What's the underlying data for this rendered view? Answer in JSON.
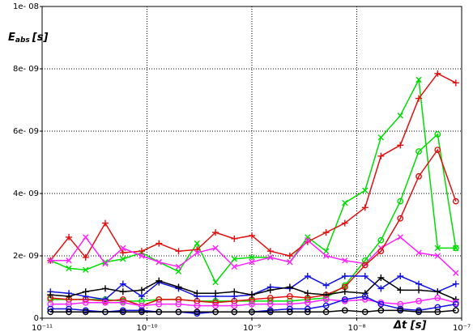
{
  "chart_data": {
    "type": "line",
    "xlog": true,
    "grid": true,
    "ylabel": "E",
    "ylabel_sub": "abs",
    "ylabel_unit": "[s]",
    "xlabel": "Δt [s]",
    "xlim": [
      1e-11,
      1e-07
    ],
    "xticks": [
      {
        "value": 1e-11,
        "label": "10⁻¹¹"
      },
      {
        "value": 1e-10,
        "label": "10⁻¹⁰"
      },
      {
        "value": 1e-09,
        "label": "10⁻⁹"
      },
      {
        "value": 1e-08,
        "label": "10⁻⁸"
      },
      {
        "value": 1e-07,
        "label": "10⁻⁷"
      }
    ],
    "ylim": [
      0,
      1e-08
    ],
    "yticks": [
      0,
      {
        "value": 2e-09,
        "label": "2e- 09"
      },
      {
        "value": 4e-09,
        "label": "4e- 09"
      },
      {
        "value": 6e-09,
        "label": "6e- 09"
      },
      {
        "value": 8e-09,
        "label": "8e- 09"
      },
      {
        "value": 1e-08,
        "label": "1e- 08"
      }
    ],
    "x": [
      1.2e-11,
      1.8e-11,
      2.6e-11,
      4e-11,
      5.9e-11,
      8.9e-11,
      1.3e-10,
      2e-10,
      3e-10,
      4.5e-10,
      6.8e-10,
      1e-09,
      1.5e-09,
      2.3e-09,
      3.4e-09,
      5.1e-09,
      7.7e-09,
      1.2e-08,
      1.7e-08,
      2.6e-08,
      3.9e-08,
      5.9e-08,
      8.8e-08
    ],
    "series": [
      {
        "color": "#00dd00",
        "marker": "x",
        "values": [
          1.85e-09,
          1.6e-09,
          1.55e-09,
          1.8e-09,
          1.9e-09,
          2.1e-09,
          1.8e-09,
          1.5e-09,
          2.4e-09,
          1.15e-09,
          1.9e-09,
          1.95e-09,
          1.95e-09,
          1.8e-09,
          2.6e-09,
          2.15e-09,
          3.7e-09,
          4.1e-09,
          5.8e-09,
          6.5e-09,
          7.65e-09,
          2.25e-09,
          2.25e-09
        ]
      },
      {
        "color": "#e01010",
        "marker": "+",
        "values": [
          1.85e-09,
          2.6e-09,
          1.95e-09,
          3.05e-09,
          2.1e-09,
          2.15e-09,
          2.4e-09,
          2.15e-09,
          2.2e-09,
          2.75e-09,
          2.55e-09,
          2.65e-09,
          2.15e-09,
          2e-09,
          2.45e-09,
          2.75e-09,
          3.05e-09,
          3.55e-09,
          5.2e-09,
          5.55e-09,
          7.05e-09,
          7.85e-09,
          7.55e-09
        ]
      },
      {
        "color": "#ff22ff",
        "marker": "x",
        "values": [
          1.85e-09,
          1.85e-09,
          2.6e-09,
          1.75e-09,
          2.25e-09,
          2e-09,
          1.8e-09,
          1.65e-09,
          2.1e-09,
          2.25e-09,
          1.65e-09,
          1.8e-09,
          1.95e-09,
          1.8e-09,
          2.5e-09,
          2e-09,
          1.85e-09,
          1.75e-09,
          2.25e-09,
          2.6e-09,
          2.1e-09,
          2e-09,
          1.45e-09
        ]
      },
      {
        "color": "#00dd00",
        "marker": "o",
        "values": [
          6e-10,
          6e-10,
          6e-10,
          6e-10,
          5.5e-10,
          5.5e-10,
          6e-10,
          6e-10,
          5.5e-10,
          5.5e-10,
          5.5e-10,
          5.5e-10,
          5.5e-10,
          5.5e-10,
          6e-10,
          6.5e-10,
          1.05e-09,
          1.85e-09,
          2.5e-09,
          3.75e-09,
          5.35e-09,
          5.9e-09,
          2.25e-09
        ]
      },
      {
        "color": "#e01010",
        "marker": "o",
        "values": [
          6.5e-10,
          6e-10,
          6e-10,
          5.5e-10,
          6e-10,
          4e-10,
          6e-10,
          6e-10,
          5.5e-10,
          5e-10,
          5.5e-10,
          6e-10,
          6.5e-10,
          7e-10,
          6.5e-10,
          7.5e-10,
          1e-09,
          1.7e-09,
          2.15e-09,
          3.2e-09,
          4.55e-09,
          5.4e-09,
          3.75e-09
        ]
      },
      {
        "color": "#1010e0",
        "marker": "+",
        "values": [
          8.5e-10,
          8e-10,
          7e-10,
          6e-10,
          1.1e-09,
          7e-10,
          1.15e-09,
          9.5e-10,
          7e-10,
          7e-10,
          7e-10,
          7.5e-10,
          1e-09,
          9.5e-10,
          1.35e-09,
          1.05e-09,
          1.35e-09,
          1.35e-09,
          9.5e-10,
          1.35e-09,
          1.1e-09,
          8.5e-10,
          1.1e-09
        ]
      },
      {
        "color": "#000000",
        "marker": "+",
        "values": [
          7.5e-10,
          7e-10,
          8.5e-10,
          9.5e-10,
          8.5e-10,
          9e-10,
          1.2e-09,
          1e-09,
          8e-10,
          8e-10,
          8.5e-10,
          7.5e-10,
          9e-10,
          1e-09,
          8e-10,
          7.5e-10,
          8.5e-10,
          8e-10,
          1.3e-09,
          9e-10,
          9e-10,
          8.5e-10,
          6e-10
        ]
      },
      {
        "color": "#ff22ff",
        "marker": "o",
        "values": [
          4.5e-10,
          4.5e-10,
          5e-10,
          5e-10,
          5e-10,
          4e-10,
          4.5e-10,
          4.5e-10,
          4e-10,
          4e-10,
          4e-10,
          4.5e-10,
          4.5e-10,
          4.5e-10,
          5e-10,
          6e-10,
          5.5e-10,
          6e-10,
          5e-10,
          4.5e-10,
          5.5e-10,
          6.5e-10,
          5e-10
        ]
      },
      {
        "color": "#1010e0",
        "marker": "o",
        "values": [
          3e-10,
          3e-10,
          2.5e-10,
          2e-10,
          2.5e-10,
          2.5e-10,
          2e-10,
          2e-10,
          1.5e-10,
          2e-10,
          2e-10,
          2e-10,
          2.5e-10,
          3e-10,
          3e-10,
          4e-10,
          6e-10,
          7e-10,
          4.5e-10,
          3e-10,
          2.5e-10,
          3.5e-10,
          4.5e-10
        ]
      },
      {
        "color": "#000000",
        "marker": "o",
        "values": [
          2e-10,
          2e-10,
          2e-10,
          2e-10,
          2e-10,
          2e-10,
          2e-10,
          2e-10,
          2e-10,
          2e-10,
          2e-10,
          2e-10,
          2e-10,
          2e-10,
          2e-10,
          2e-10,
          2.5e-10,
          2e-10,
          2.5e-10,
          2.5e-10,
          2e-10,
          2e-10,
          2.5e-10
        ]
      }
    ]
  }
}
